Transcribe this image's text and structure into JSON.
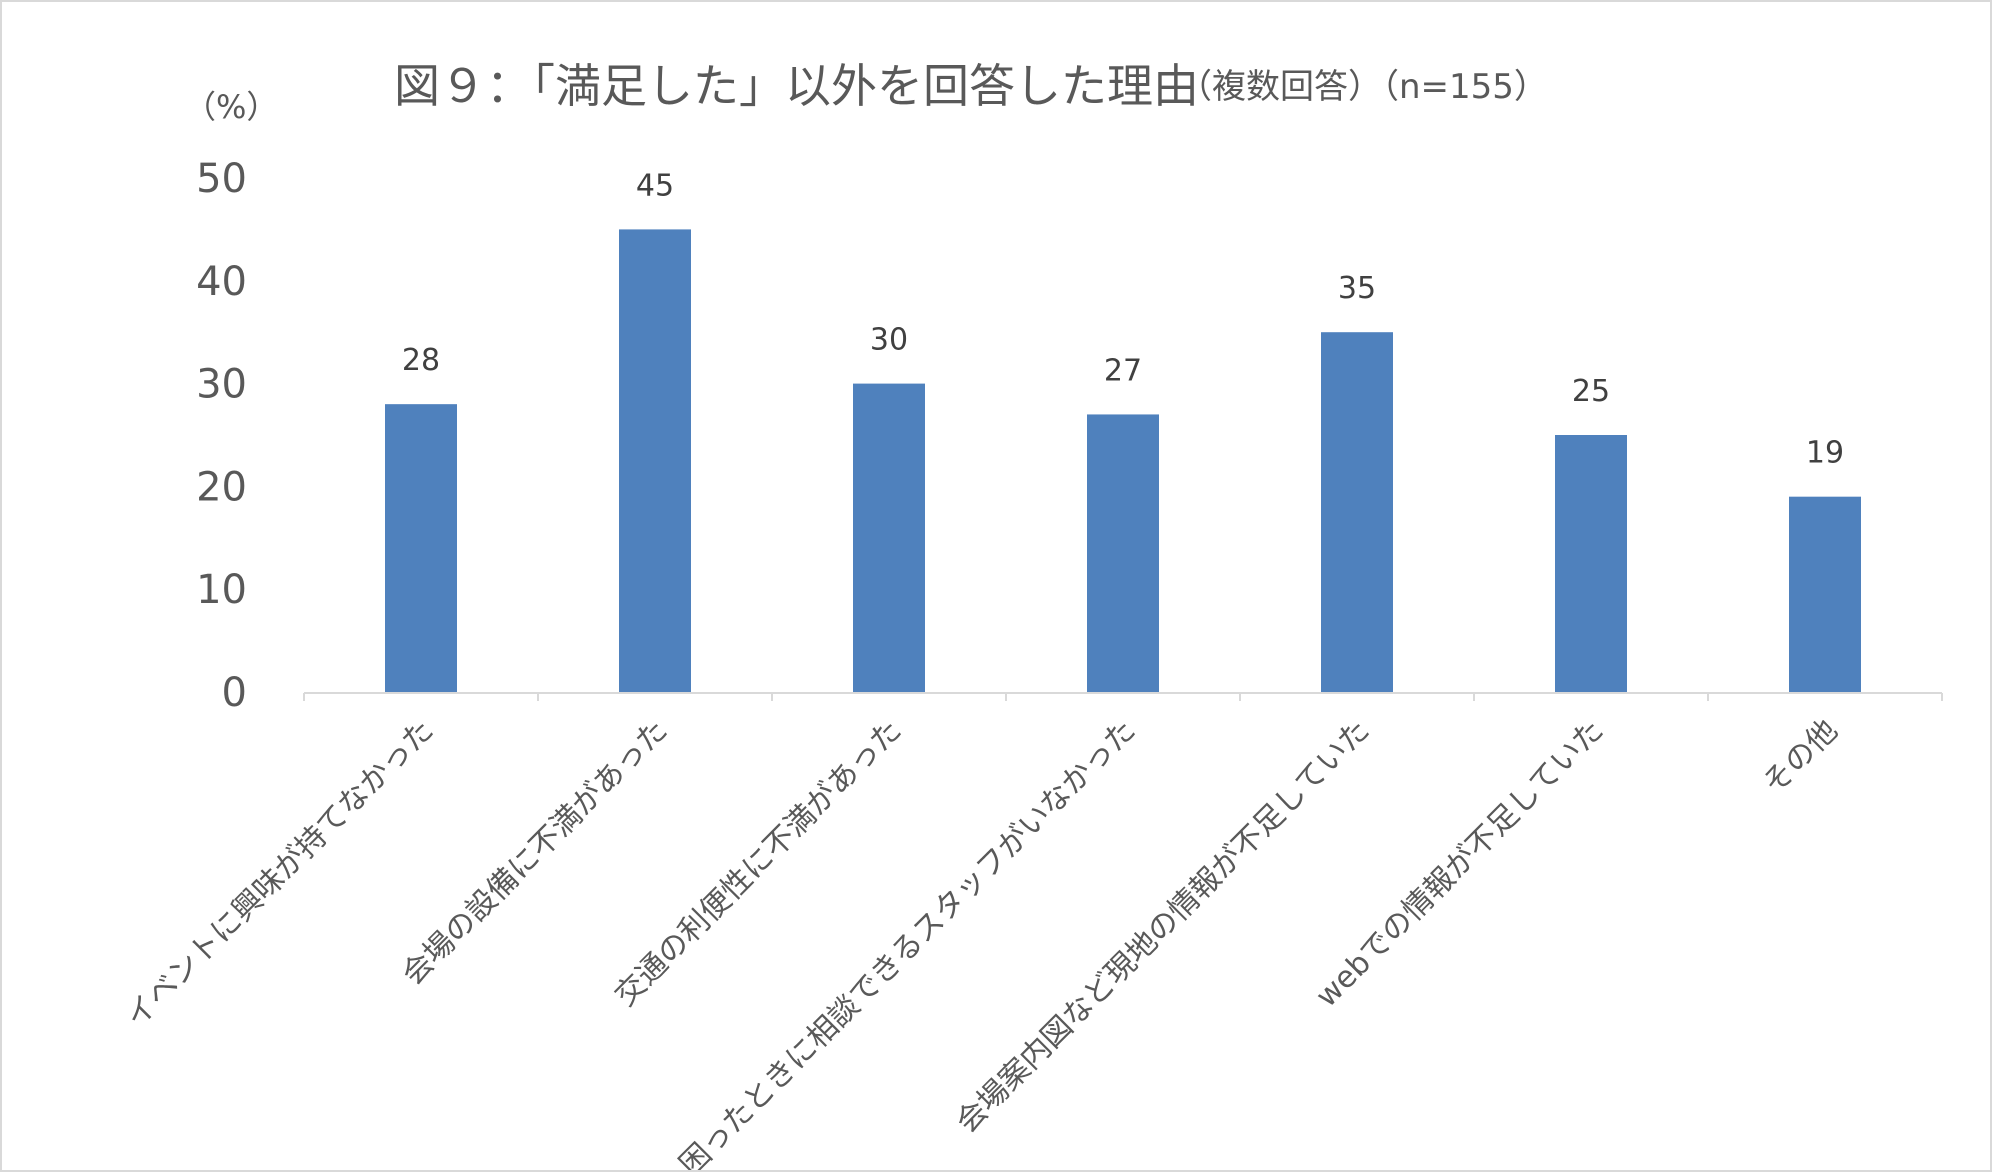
{
  "chart_data": {
    "type": "bar",
    "title": "図９：「満足した」以外を回答した理由",
    "subtitle": "（複数回答）（n=155）",
    "ylabel": "（%）",
    "xlabel": "",
    "ylim": [
      0,
      50
    ],
    "yticks": [
      "0",
      "10",
      "20",
      "30",
      "40",
      "50"
    ],
    "grid": false,
    "legend": "none",
    "bar_color": "#4f81bd",
    "categories": [
      "イベントに興味が持てなかった",
      "会場の設備に不満があった",
      "交通の利便性に不満があった",
      "困ったときに相談できるスタッフがいなかった",
      "会場案内図など現地の情報が不足していた",
      "webでの情報が不足していた",
      "その他"
    ],
    "values": [
      28,
      45,
      30,
      27,
      35,
      25,
      19
    ]
  }
}
